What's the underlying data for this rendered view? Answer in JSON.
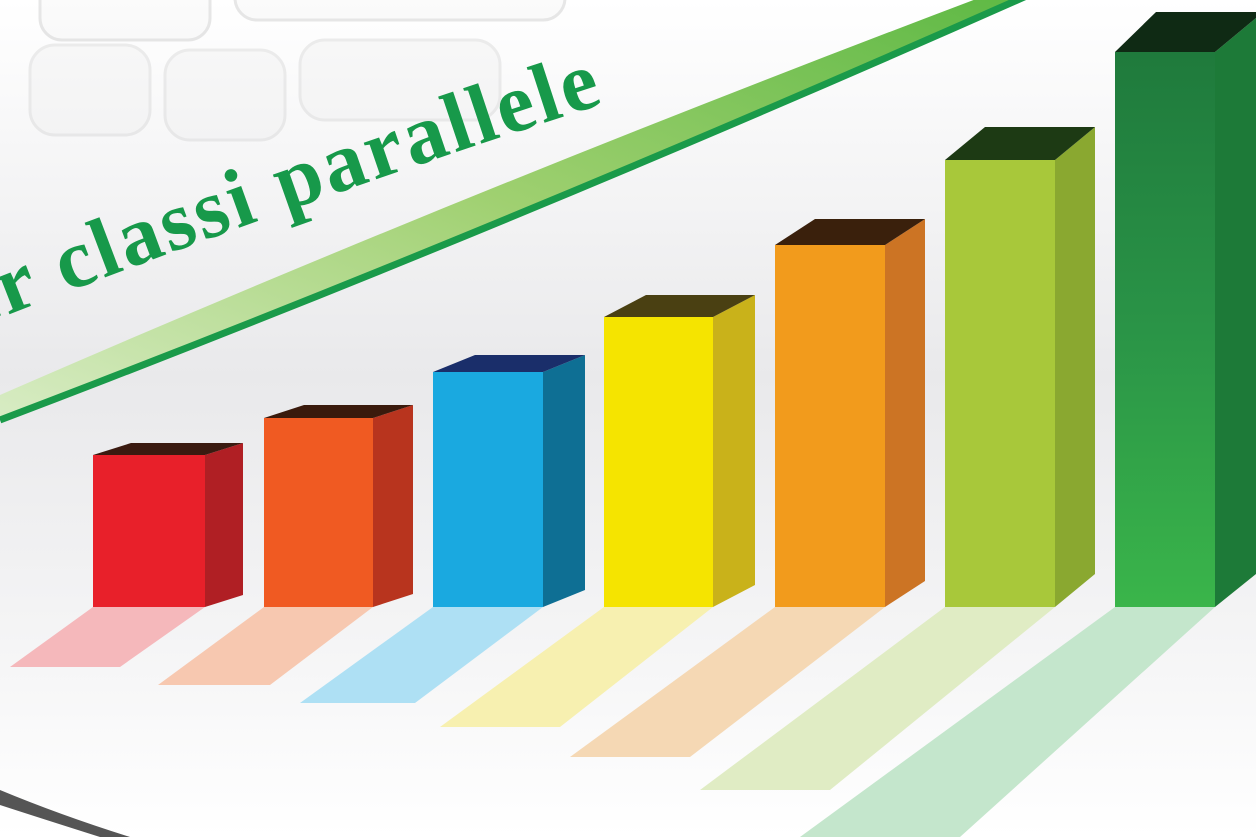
{
  "banner": {
    "text": "er classi parallele"
  }
}
